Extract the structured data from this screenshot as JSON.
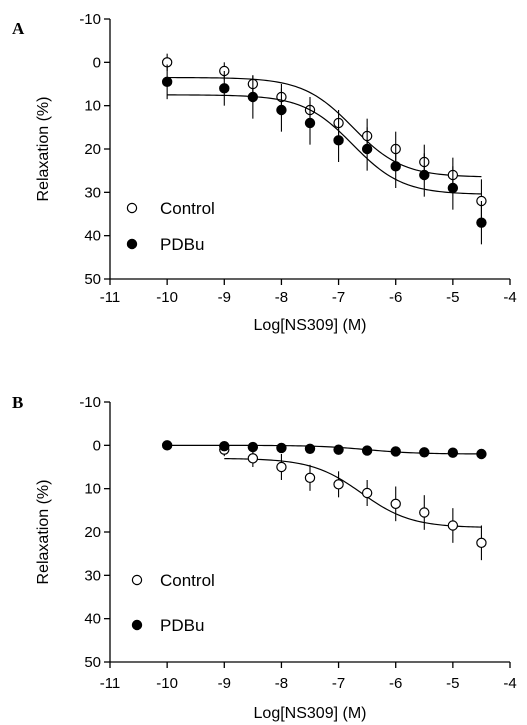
{
  "chart_data": [
    {
      "panel": "A",
      "type": "scatter",
      "xlabel": "Log[NS309] (M)",
      "ylabel": "Relaxation (%)",
      "xlim": [
        -11,
        -4
      ],
      "ylim": [
        50,
        -10
      ],
      "y_inverted": true,
      "xticks": [
        "-11",
        "-10",
        "-9",
        "-8",
        "-7",
        "-6",
        "-5",
        "-4"
      ],
      "yticks": [
        "-10",
        "0",
        "10",
        "20",
        "30",
        "40",
        "50"
      ],
      "legend_position": "bottom-left",
      "series": [
        {
          "name": "Control",
          "marker": "open-circle",
          "x": [
            -10,
            -9,
            -8.5,
            -8,
            -7.5,
            -7,
            -6.5,
            -6,
            -5.5,
            -5,
            -4.5
          ],
          "y": [
            0,
            2,
            5,
            8,
            11,
            14,
            17,
            20,
            23,
            26,
            32
          ],
          "err": [
            2,
            2,
            2,
            3,
            3,
            3,
            4,
            4,
            4,
            4,
            5
          ],
          "fit": {
            "bottom": 3.5,
            "top": 26.5,
            "logEC50": -6.75,
            "hill": 1
          }
        },
        {
          "name": "PDBu",
          "marker": "filled-circle",
          "x": [
            -10,
            -9,
            -8.5,
            -8,
            -7.5,
            -7,
            -6.5,
            -6,
            -5.5,
            -5,
            -4.5
          ],
          "y": [
            4.5,
            6,
            8,
            11,
            14,
            18,
            20,
            24,
            26,
            29,
            37
          ],
          "err": [
            4,
            4,
            5,
            5,
            5,
            5,
            5,
            5,
            5,
            5,
            5
          ],
          "fit": {
            "bottom": 7.5,
            "top": 30.5,
            "logEC50": -6.75,
            "hill": 1
          }
        }
      ]
    },
    {
      "panel": "B",
      "type": "scatter",
      "xlabel": "Log[NS309] (M)",
      "ylabel": "Relaxation (%)",
      "xlim": [
        -11,
        -4
      ],
      "ylim": [
        50,
        -10
      ],
      "y_inverted": true,
      "xticks": [
        "-11",
        "-10",
        "-9",
        "-8",
        "-7",
        "-6",
        "-5",
        "-4"
      ],
      "yticks": [
        "-10",
        "0",
        "10",
        "20",
        "30",
        "40",
        "50"
      ],
      "legend_position": "bottom-left",
      "series": [
        {
          "name": "Control",
          "marker": "open-circle",
          "x": [
            -9,
            -8.5,
            -8,
            -7.5,
            -7,
            -6.5,
            -6,
            -5.5,
            -5,
            -4.5
          ],
          "y": [
            1,
            3,
            5,
            7.5,
            9,
            11,
            13.5,
            15.5,
            18.5,
            22.5
          ],
          "err": [
            1.5,
            2,
            3,
            3,
            3,
            3,
            4,
            4,
            4,
            4
          ],
          "fit": {
            "bottom": 3,
            "top": 19,
            "logEC50": -6.6,
            "hill": 1
          }
        },
        {
          "name": "PDBu",
          "marker": "filled-circle",
          "x": [
            -10,
            -9,
            -8.5,
            -8,
            -7.5,
            -7,
            -6.5,
            -6,
            -5.5,
            -5,
            -4.5
          ],
          "y": [
            0,
            0.2,
            0.4,
            0.6,
            0.8,
            1,
            1.2,
            1.4,
            1.6,
            1.7,
            2
          ],
          "err": [
            0.5,
            0.5,
            0.5,
            0.5,
            0.5,
            0.5,
            0.5,
            0.5,
            0.5,
            0.5,
            0.5
          ],
          "fit": {
            "bottom": 0,
            "top": 2,
            "logEC50": -6.5,
            "hill": 1
          }
        }
      ]
    }
  ]
}
